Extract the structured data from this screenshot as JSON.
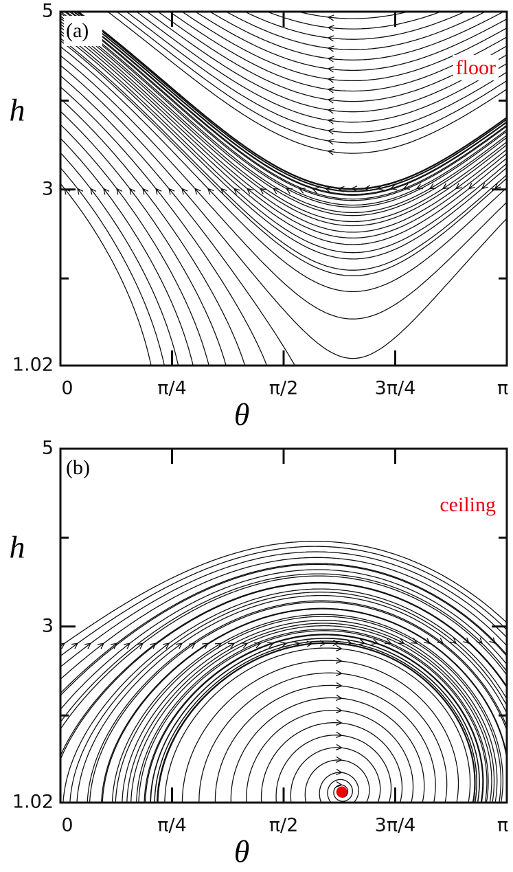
{
  "chart_data": [
    {
      "type": "streamplot",
      "panel_label": "(a)",
      "annotation": {
        "text": "floor",
        "color": "#e8000b"
      },
      "xlabel": "θ",
      "ylabel": "h",
      "xlim": [
        0,
        3.1416
      ],
      "ylim": [
        1.02,
        5
      ],
      "xticks": [
        {
          "value": 0,
          "label": "0"
        },
        {
          "value": 0.7854,
          "label": "π/4"
        },
        {
          "value": 1.5708,
          "label": "π/2"
        },
        {
          "value": 2.3562,
          "label": "3π/4"
        },
        {
          "value": 3.1416,
          "label": "π"
        }
      ],
      "yticks": [
        {
          "value": 1.02,
          "label": "1.02"
        },
        3,
        5
      ],
      "minor_yticks": [
        2,
        4
      ]
    },
    {
      "type": "streamplot",
      "panel_label": "(b)",
      "annotation": {
        "text": "ceiling",
        "color": "#e8000b"
      },
      "xlabel": "θ",
      "ylabel": "h",
      "xlim": [
        0,
        3.1416
      ],
      "ylim": [
        1.02,
        5
      ],
      "xticks": [
        {
          "value": 0,
          "label": "0"
        },
        {
          "value": 0.7854,
          "label": "π/4"
        },
        {
          "value": 1.5708,
          "label": "π/2"
        },
        {
          "value": 2.3562,
          "label": "3π/4"
        },
        {
          "value": 3.1416,
          "label": "π"
        }
      ],
      "yticks": [
        {
          "value": 1.02,
          "label": "1.02"
        },
        3,
        5
      ],
      "minor_yticks": [
        2,
        4
      ],
      "points": [
        {
          "x": 1.98,
          "y": 1.14,
          "color": "#f00000"
        }
      ]
    }
  ]
}
